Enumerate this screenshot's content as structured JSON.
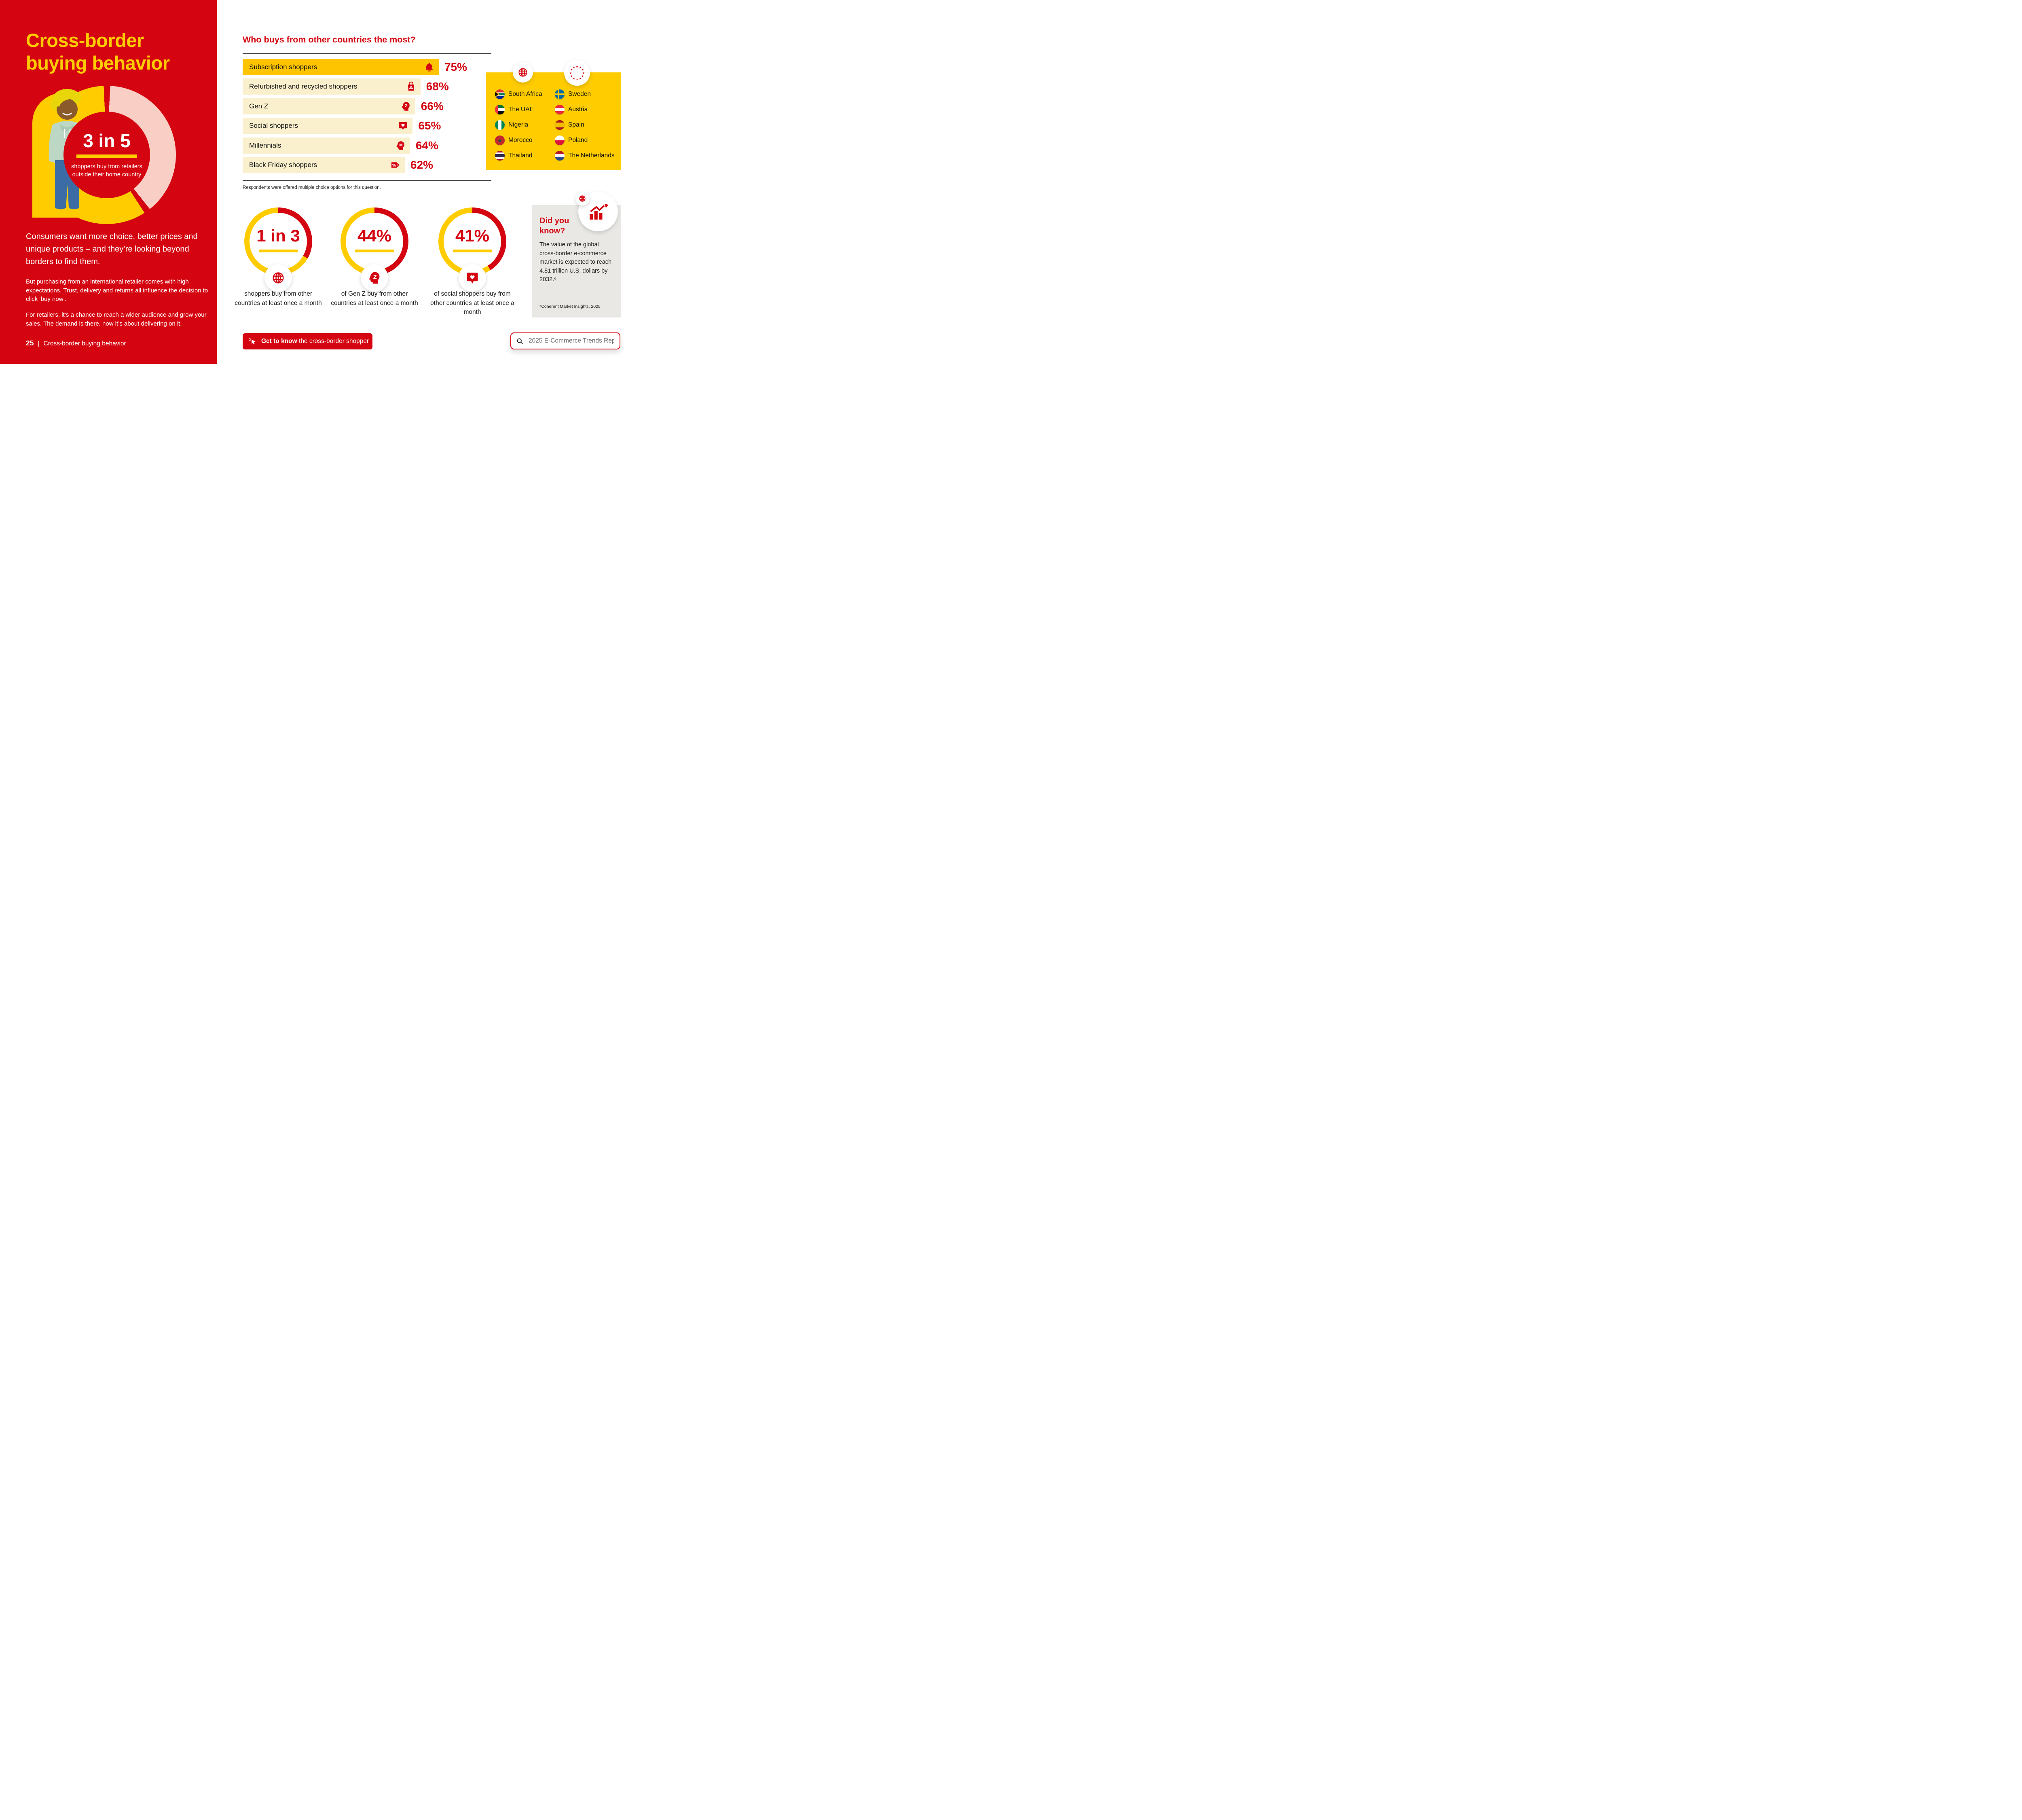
{
  "colors": {
    "brand_red": "#D40511",
    "brand_yellow": "#FFCC00",
    "bar_gold": "#FFC400",
    "bar_cream": "#FAF0CE",
    "donut_pink": "#F9CEC4",
    "card_gray": "#E9E8E5"
  },
  "left_panel": {
    "title_line1": "Cross-border",
    "title_line2": "buying behavior",
    "donut_stat": "3 in 5",
    "donut_caption": "shoppers buy from retailers outside their home country",
    "intro": "Consumers want more choice, better prices and unique products – and they’re looking beyond borders to find them.",
    "para1": "But purchasing from an international retailer comes with high expectations. Trust, delivery and returns all influence the decision to click ‘buy now’.",
    "para2": "For retailers, it’s a chance to reach a wider audience and grow your sales. The demand is there, now it’s about delivering on it.",
    "page_number": "25",
    "footer_divider": "|",
    "footer_title": "Cross-border buying behavior"
  },
  "main": {
    "question_heading": "Who buys from other countries the most?",
    "chart_note": "Respondents were offered multiple choice options for this question.",
    "countries_global": [
      "South Africa",
      "The UAE",
      "Nigeria",
      "Morocco",
      "Thailand"
    ],
    "countries_eu": [
      "Sweden",
      "Austria",
      "Spain",
      "Poland",
      "The Netherlands"
    ],
    "rings": [
      {
        "stat": "1 in 3",
        "caption": "shoppers buy from other countries at least once a month"
      },
      {
        "stat": "44%",
        "caption": "of Gen Z buy from other countries at least once a month"
      },
      {
        "stat": "41%",
        "caption": "of social shoppers buy from other countries at least once a month"
      }
    ],
    "did_you_know": {
      "heading": "Did you know?",
      "body": "The value of the global cross-border e-commerce market is expected to reach 4.81 trillion U.S. dollars by 2032.⁶",
      "source": "⁶Coherent Market Insights, 2025"
    },
    "cta_bold": "Get to know",
    "cta_rest": " the cross-border shopper",
    "search_value": "2025 E-Commerce Trends Report"
  },
  "chart_data": [
    {
      "type": "bar",
      "orientation": "horizontal",
      "title": "Who buys from other countries the most?",
      "unit": "%",
      "categories": [
        "Subscription shoppers",
        "Refurbished and recycled shoppers",
        "Gen Z",
        "Social shoppers",
        "Millennials",
        "Black Friday shoppers"
      ],
      "values": [
        75,
        68,
        66,
        65,
        64,
        62
      ],
      "value_labels": [
        "75%",
        "68%",
        "66%",
        "65%",
        "64%",
        "62%"
      ],
      "icons": [
        "bell-icon",
        "recycle-bag-icon",
        "gen-z-head-icon",
        "social-heart-icon",
        "millennial-head-icon",
        "percent-tag-icon"
      ],
      "xlim": [
        0,
        100
      ],
      "note": "Respondents were offered multiple choice options for this question."
    },
    {
      "type": "pie",
      "title": "3 in 5 shoppers buy from retailers outside their home country",
      "slices": [
        {
          "label": "buy from retailers outside home country",
          "value": 60,
          "color": "#FFCC00"
        },
        {
          "label": "remainder",
          "value": 40,
          "color": "#F9CEC4"
        }
      ]
    },
    {
      "type": "pie",
      "title": "1 in 3 shoppers buy from other countries at least once a month",
      "slices": [
        {
          "label": "at least once a month",
          "value": 33,
          "color": "#D40511"
        },
        {
          "label": "remainder",
          "value": 67,
          "color": "#FFCC00"
        }
      ]
    },
    {
      "type": "pie",
      "title": "44% of Gen Z buy from other countries at least once a month",
      "slices": [
        {
          "label": "at least once a month",
          "value": 44,
          "color": "#D40511"
        },
        {
          "label": "remainder",
          "value": 56,
          "color": "#FFCC00"
        }
      ]
    },
    {
      "type": "pie",
      "title": "41% of social shoppers buy from other countries at least once a month",
      "slices": [
        {
          "label": "at least once a month",
          "value": 41,
          "color": "#D40511"
        },
        {
          "label": "remainder",
          "value": 59,
          "color": "#FFCC00"
        }
      ]
    }
  ]
}
